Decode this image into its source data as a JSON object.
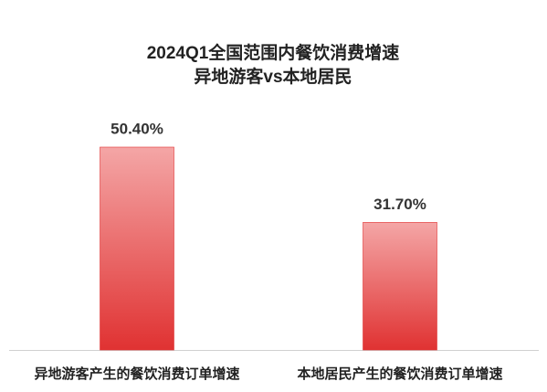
{
  "chart_data": {
    "type": "bar",
    "title": "2024Q1全国范围内餐饮消费增速",
    "subtitle": "异地游客vs本地居民",
    "categories": [
      "异地游客产生的餐饮消费订单增速",
      "本地居民产生的餐饮消费订单增速"
    ],
    "values": [
      50.4,
      31.7
    ],
    "value_labels": [
      "50.40%",
      "31.70%"
    ],
    "color": "#e03232"
  }
}
